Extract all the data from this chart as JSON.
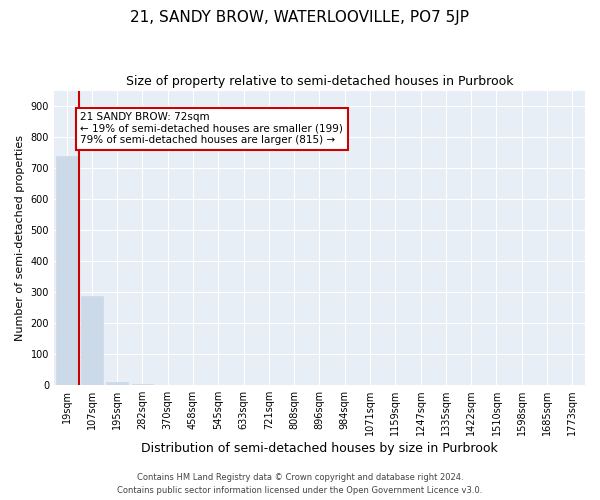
{
  "title": "21, SANDY BROW, WATERLOOVILLE, PO7 5JP",
  "subtitle": "Size of property relative to semi-detached houses in Purbrook",
  "xlabel": "Distribution of semi-detached houses by size in Purbrook",
  "ylabel": "Number of semi-detached properties",
  "categories": [
    "19sqm",
    "107sqm",
    "195sqm",
    "282sqm",
    "370sqm",
    "458sqm",
    "545sqm",
    "633sqm",
    "721sqm",
    "808sqm",
    "896sqm",
    "984sqm",
    "1071sqm",
    "1159sqm",
    "1247sqm",
    "1335sqm",
    "1422sqm",
    "1510sqm",
    "1598sqm",
    "1685sqm",
    "1773sqm"
  ],
  "values": [
    740,
    285,
    9,
    1,
    0,
    0,
    0,
    0,
    0,
    0,
    0,
    0,
    0,
    0,
    0,
    0,
    0,
    0,
    0,
    0,
    0
  ],
  "bar_color": "#ccd9e8",
  "bar_edgecolor": "#ccd9e8",
  "subject_label": "21 SANDY BROW: 72sqm",
  "smaller_text": "← 19% of semi-detached houses are smaller (199)",
  "larger_text": "79% of semi-detached houses are larger (815) →",
  "annotation_box_color": "#cc0000",
  "subject_line_color": "#cc0000",
  "ylim": [
    0,
    950
  ],
  "yticks": [
    0,
    100,
    200,
    300,
    400,
    500,
    600,
    700,
    800,
    900
  ],
  "footer1": "Contains HM Land Registry data © Crown copyright and database right 2024.",
  "footer2": "Contains public sector information licensed under the Open Government Licence v3.0.",
  "plot_bg_color": "#e8eef5",
  "title_fontsize": 11,
  "subtitle_fontsize": 9,
  "tick_fontsize": 7,
  "ylabel_fontsize": 8,
  "xlabel_fontsize": 9,
  "annotation_fontsize": 7.5,
  "footer_fontsize": 6
}
